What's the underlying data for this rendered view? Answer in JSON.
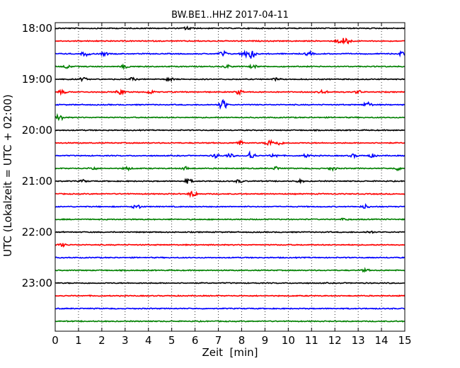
{
  "chart_data": {
    "type": "line",
    "title": "BW.BE1..HHZ 2017-04-11",
    "xlabel": "Zeit  [min]",
    "ylabel": "UTC (Lokalzeit = UTC + 02:00)",
    "xlim": [
      0,
      15
    ],
    "x_ticks": [
      0,
      1,
      2,
      3,
      4,
      5,
      6,
      7,
      8,
      9,
      10,
      11,
      12,
      13,
      14,
      15
    ],
    "hour_labels": [
      "18:00",
      "19:00",
      "20:00",
      "21:00",
      "22:00",
      "23:00"
    ],
    "grid": "vertical-dotted",
    "trace_minutes": 15,
    "colors": [
      "#000000",
      "#ff0000",
      "#0000ff",
      "#008000"
    ],
    "traces": [
      {
        "time": "18:00",
        "events": [
          [
            5.7,
            0.5
          ]
        ]
      },
      {
        "time": "18:15",
        "events": [
          [
            12.5,
            1.2
          ],
          [
            12.2,
            0.5
          ]
        ]
      },
      {
        "time": "18:30",
        "events": [
          [
            1.3,
            0.6
          ],
          [
            2.1,
            0.4
          ],
          [
            7.2,
            0.7
          ],
          [
            8.4,
            1.4
          ],
          [
            8.1,
            0.6
          ],
          [
            10.9,
            0.5
          ],
          [
            14.9,
            0.6
          ]
        ]
      },
      {
        "time": "18:45",
        "events": [
          [
            0.5,
            0.4
          ],
          [
            3.0,
            0.4
          ],
          [
            7.4,
            0.4
          ],
          [
            8.5,
            0.4
          ]
        ]
      },
      {
        "time": "19:00",
        "events": [
          [
            1.2,
            0.4
          ],
          [
            3.3,
            0.4
          ],
          [
            4.9,
            0.5
          ],
          [
            9.5,
            0.3
          ]
        ]
      },
      {
        "time": "19:15",
        "events": [
          [
            0.3,
            0.5
          ],
          [
            2.8,
            0.6
          ],
          [
            4.1,
            0.4
          ],
          [
            7.9,
            0.6
          ],
          [
            11.5,
            0.5
          ],
          [
            13.0,
            0.4
          ]
        ]
      },
      {
        "time": "19:30",
        "events": [
          [
            7.2,
            1.3
          ],
          [
            13.4,
            0.7
          ]
        ]
      },
      {
        "time": "19:45",
        "events": [
          [
            0.2,
            0.9
          ]
        ]
      },
      {
        "time": "20:00",
        "events": []
      },
      {
        "time": "20:15",
        "events": [
          [
            7.9,
            0.6
          ],
          [
            9.2,
            0.8
          ],
          [
            9.6,
            0.5
          ]
        ]
      },
      {
        "time": "20:30",
        "events": [
          [
            6.9,
            0.5
          ],
          [
            7.5,
            0.5
          ],
          [
            8.4,
            1.2
          ],
          [
            9.4,
            0.5
          ],
          [
            10.8,
            0.4
          ],
          [
            12.8,
            0.4
          ],
          [
            13.6,
            0.4
          ]
        ]
      },
      {
        "time": "20:45",
        "events": [
          [
            1.6,
            0.4
          ],
          [
            3.1,
            0.4
          ],
          [
            5.6,
            0.4
          ],
          [
            9.5,
            0.4
          ],
          [
            11.9,
            0.4
          ],
          [
            14.7,
            0.4
          ]
        ]
      },
      {
        "time": "21:00",
        "events": [
          [
            1.2,
            0.3
          ],
          [
            5.7,
            0.6
          ],
          [
            7.9,
            0.4
          ],
          [
            10.5,
            0.3
          ]
        ]
      },
      {
        "time": "21:15",
        "events": [
          [
            5.9,
            0.8
          ]
        ]
      },
      {
        "time": "21:30",
        "events": [
          [
            3.5,
            0.6
          ],
          [
            13.3,
            0.5
          ]
        ]
      },
      {
        "time": "21:45",
        "events": [
          [
            12.4,
            0.3
          ]
        ]
      },
      {
        "time": "22:00",
        "events": [
          [
            13.5,
            0.3
          ]
        ]
      },
      {
        "time": "22:15",
        "events": [
          [
            0.3,
            0.4
          ]
        ]
      },
      {
        "time": "22:30",
        "events": []
      },
      {
        "time": "22:45",
        "events": [
          [
            13.3,
            0.3
          ]
        ]
      },
      {
        "time": "23:00",
        "events": []
      },
      {
        "time": "23:15",
        "events": []
      },
      {
        "time": "23:30",
        "events": []
      },
      {
        "time": "23:45",
        "events": []
      }
    ]
  }
}
